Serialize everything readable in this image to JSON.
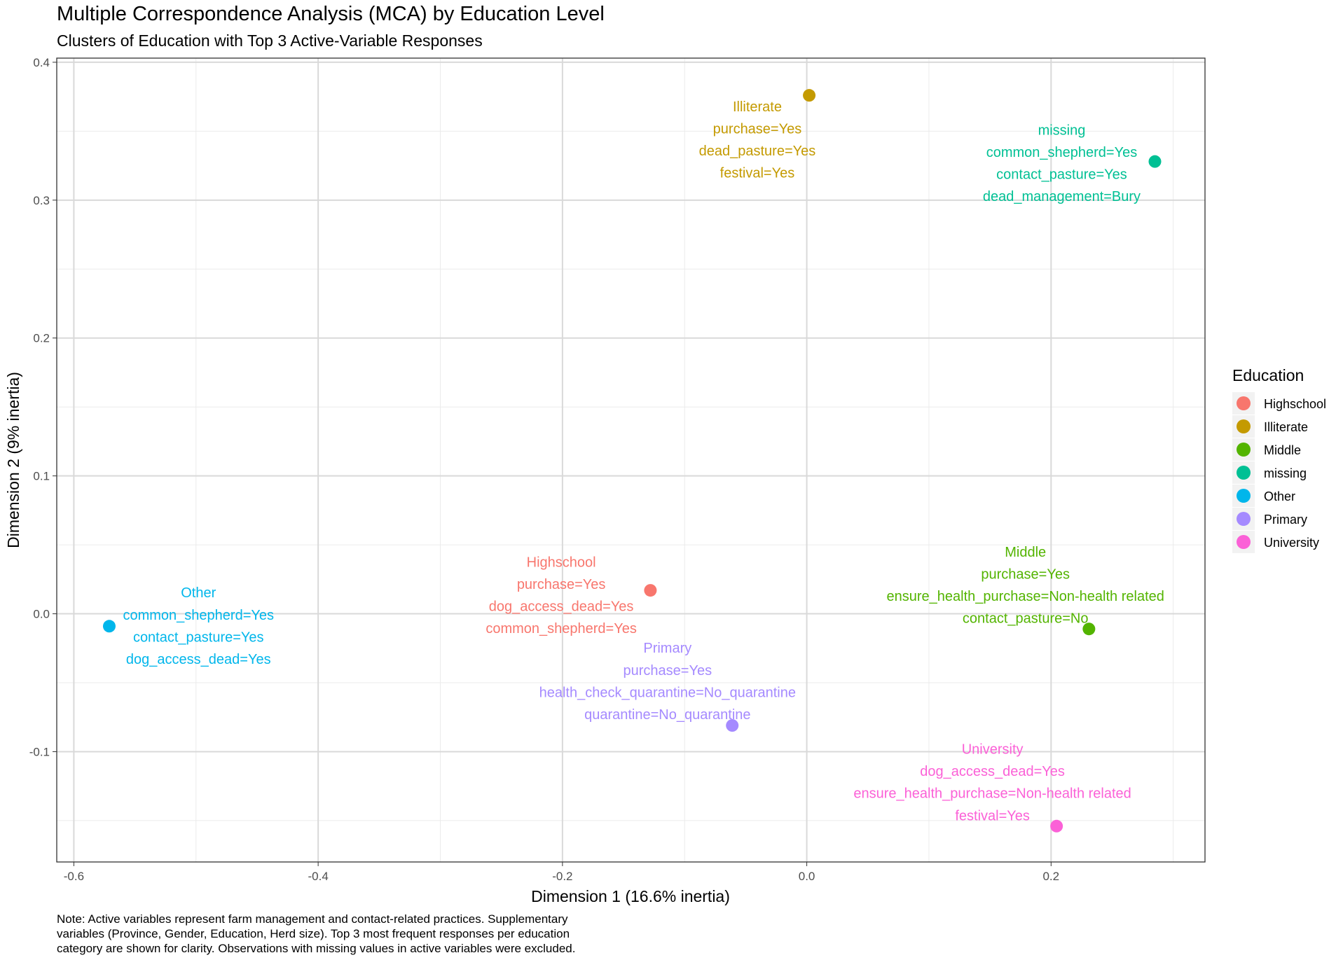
{
  "chart_data": {
    "type": "scatter",
    "title": "Multiple Correspondence Analysis (MCA) by Education Level",
    "subtitle": "Clusters of Education with Top 3 Active-Variable Responses",
    "xlabel": "Dimension 1 (16.6% inertia)",
    "ylabel": "Dimension 2 (9% inertia)",
    "xlim": [
      -0.614,
      0.326
    ],
    "ylim": [
      -0.18,
      0.403
    ],
    "xticks": [
      -0.6,
      -0.4,
      -0.2,
      0.0,
      0.2
    ],
    "xtick_labels": [
      "-0.6",
      "-0.4",
      "-0.2",
      "0.0",
      "0.2"
    ],
    "yticks": [
      -0.1,
      0.0,
      0.1,
      0.2,
      0.3,
      0.4
    ],
    "ytick_labels": [
      "-0.1",
      "0.0",
      "0.1",
      "0.2",
      "0.3",
      "0.4"
    ],
    "grid": true,
    "legend": {
      "title": "Education",
      "placement": "right"
    },
    "points": [
      {
        "name": "Highschool",
        "x": -0.128,
        "y": 0.017,
        "color": "#F8766D",
        "label_x": -0.201,
        "label_y": 0.0377,
        "label": [
          "Highschool",
          "purchase=Yes",
          "dog_access_dead=Yes",
          "common_shepherd=Yes"
        ]
      },
      {
        "name": "Illiterate",
        "x": 0.002,
        "y": 0.376,
        "color": "#C49A00",
        "label_x": -0.0405,
        "label_y": 0.368,
        "label": [
          "Illiterate",
          "purchase=Yes",
          "dead_pasture=Yes",
          "festival=Yes"
        ]
      },
      {
        "name": "Middle",
        "x": 0.231,
        "y": -0.011,
        "color": "#53B400",
        "label_x": 0.179,
        "label_y": 0.045,
        "label": [
          "Middle",
          "purchase=Yes",
          "ensure_health_purchase=Non-health related",
          "contact_pasture=No"
        ]
      },
      {
        "name": "missing",
        "x": 0.285,
        "y": 0.328,
        "color": "#00C094",
        "label_x": 0.2087,
        "label_y": 0.351,
        "label": [
          "missing",
          "common_shepherd=Yes",
          "contact_pasture=Yes",
          "dead_management=Bury"
        ]
      },
      {
        "name": "Other",
        "x": -0.571,
        "y": -0.009,
        "color": "#00B6EB",
        "label_x": -0.498,
        "label_y": 0.0154,
        "label": [
          "Other",
          "common_shepherd=Yes",
          "contact_pasture=Yes",
          "dog_access_dead=Yes"
        ]
      },
      {
        "name": "Primary",
        "x": -0.061,
        "y": -0.081,
        "color": "#A58AFF",
        "label_x": -0.114,
        "label_y": -0.0247,
        "label": [
          "Primary",
          "purchase=Yes",
          "health_check_quarantine=No_quarantine",
          "quarantine=No_quarantine"
        ]
      },
      {
        "name": "University",
        "x": 0.2045,
        "y": -0.154,
        "color": "#FB61D7",
        "label_x": 0.152,
        "label_y": -0.098,
        "label": [
          "University",
          "dog_access_dead=Yes",
          "ensure_health_purchase=Non-health related",
          "festival=Yes"
        ]
      }
    ],
    "note": [
      "Note: Active variables represent farm management and contact-related practices. Supplementary",
      "variables (Province, Gender, Education, Herd size). Top 3 most frequent responses per education",
      "category are shown for clarity. Observations with missing values in active variables were excluded."
    ]
  }
}
